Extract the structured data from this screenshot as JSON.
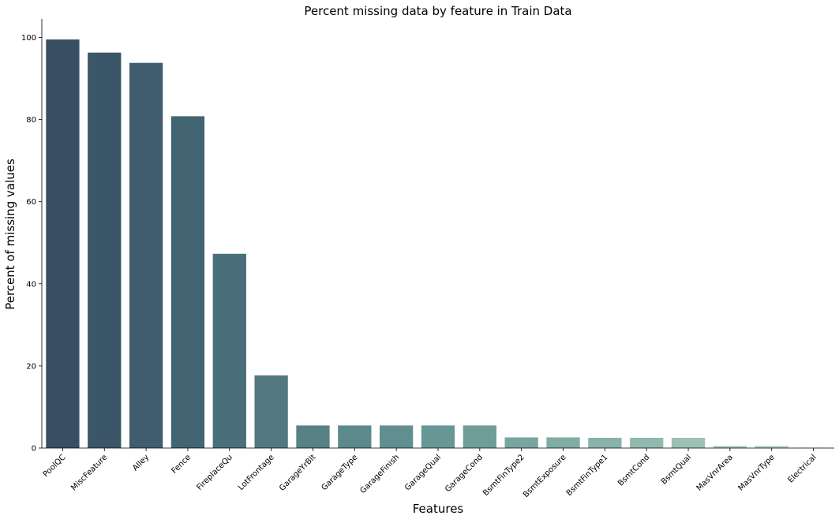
{
  "chart_data": {
    "type": "bar",
    "title": "Percent missing data by feature in Train Data",
    "xlabel": "Features",
    "ylabel": "Percent of missing values",
    "ylim": [
      0,
      104.5
    ],
    "yticks": [
      0,
      20,
      40,
      60,
      80,
      100
    ],
    "grid": false,
    "legend": "none",
    "categories": [
      "PoolQC",
      "MiscFeature",
      "Alley",
      "Fence",
      "FireplaceQu",
      "LotFrontage",
      "GarageYrBlt",
      "GarageType",
      "GarageFinish",
      "GarageQual",
      "GarageCond",
      "BsmtFinType2",
      "BsmtExposure",
      "BsmtFinType1",
      "BsmtCond",
      "BsmtQual",
      "MasVnrArea",
      "MasVnrType",
      "Electrical"
    ],
    "values": [
      99.5,
      96.3,
      93.8,
      80.8,
      47.3,
      17.7,
      5.5,
      5.5,
      5.5,
      5.5,
      5.5,
      2.6,
      2.6,
      2.5,
      2.5,
      2.5,
      0.5,
      0.5,
      0.1
    ],
    "colors": [
      "#384f63",
      "#3b5668",
      "#3f5d6e",
      "#436473",
      "#4a6e7a",
      "#53787f",
      "#578185",
      "#5c898b",
      "#618f8f",
      "#679794",
      "#6f9d99",
      "#78a59f",
      "#80aca5",
      "#89b2ab",
      "#92b9b0",
      "#9cc0b6",
      "#a5c7bc",
      "#aeccc0",
      "#b7d3c6"
    ]
  }
}
